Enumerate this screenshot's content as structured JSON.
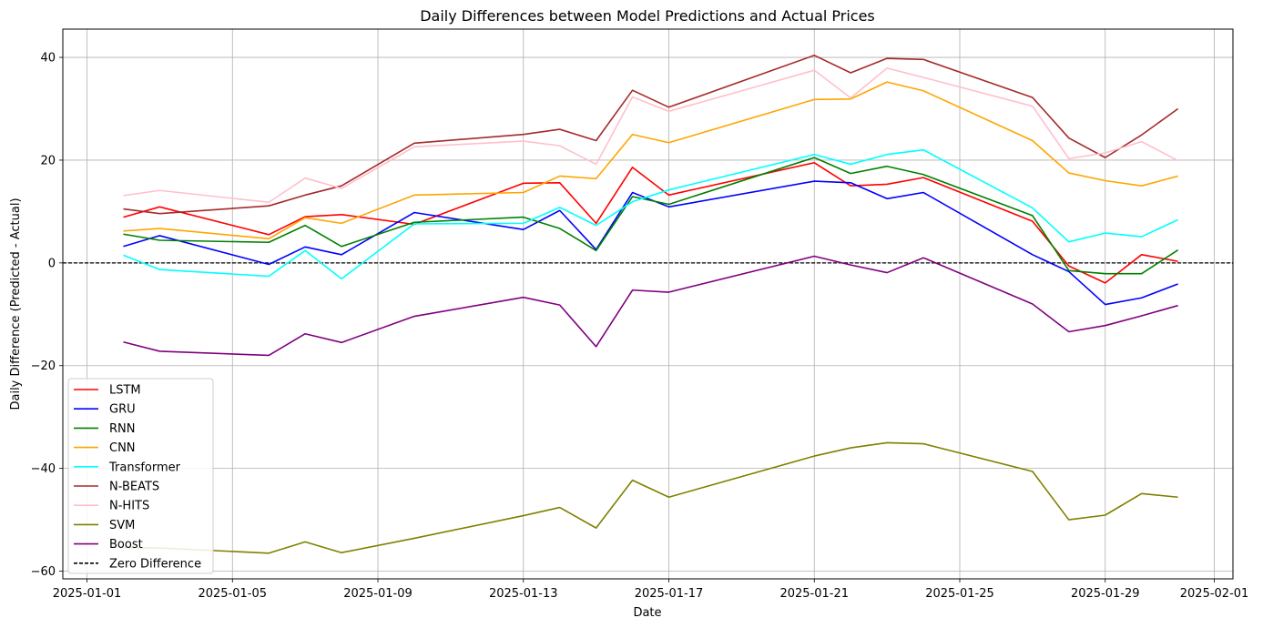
{
  "chart_data": {
    "type": "line",
    "title": "Daily Differences between Model Predictions and Actual Prices",
    "xlabel": "Date",
    "ylabel": "Daily Difference (Predicted - Actual)",
    "xlim": [
      "2025-01-01",
      "2025-02-01"
    ],
    "ylim": [
      -61.5,
      45.5
    ],
    "x_ticks": [
      "2025-01-01",
      "2025-01-05",
      "2025-01-09",
      "2025-01-13",
      "2025-01-17",
      "2025-01-21",
      "2025-01-25",
      "2025-01-29",
      "2025-02-01"
    ],
    "y_ticks": [
      -60,
      -40,
      -20,
      0,
      20,
      40
    ],
    "grid": true,
    "legend_position": "lower-left",
    "x": [
      "2025-01-02",
      "2025-01-03",
      "2025-01-06",
      "2025-01-07",
      "2025-01-08",
      "2025-01-10",
      "2025-01-13",
      "2025-01-14",
      "2025-01-15",
      "2025-01-16",
      "2025-01-17",
      "2025-01-21",
      "2025-01-22",
      "2025-01-23",
      "2025-01-24",
      "2025-01-27",
      "2025-01-28",
      "2025-01-29",
      "2025-01-30",
      "2025-01-31"
    ],
    "series": [
      {
        "name": "LSTM",
        "color": "#ff0000",
        "values": [
          8.9,
          10.9,
          5.5,
          9.0,
          9.4,
          7.5,
          15.5,
          15.6,
          7.7,
          18.6,
          13.2,
          19.5,
          15.0,
          15.3,
          16.6,
          8.1,
          -0.6,
          -3.9,
          1.6,
          0.3
        ]
      },
      {
        "name": "GRU",
        "color": "#0000ff",
        "values": [
          3.2,
          5.3,
          -0.3,
          3.1,
          1.6,
          9.8,
          6.5,
          10.2,
          2.6,
          13.7,
          10.9,
          15.9,
          15.6,
          12.5,
          13.7,
          1.6,
          -1.7,
          -8.1,
          -6.8,
          -4.1
        ]
      },
      {
        "name": "RNN",
        "color": "#008000",
        "values": [
          5.6,
          4.4,
          4.0,
          7.3,
          3.2,
          7.9,
          8.9,
          6.7,
          2.4,
          12.9,
          11.4,
          20.5,
          17.4,
          18.8,
          17.2,
          9.2,
          -1.5,
          -2.1,
          -2.1,
          2.5
        ]
      },
      {
        "name": "CNN",
        "color": "#ffa500",
        "values": [
          6.2,
          6.7,
          4.7,
          8.8,
          7.7,
          13.2,
          13.7,
          16.9,
          16.4,
          25.0,
          23.4,
          31.8,
          31.9,
          35.2,
          33.5,
          23.8,
          17.5,
          16.0,
          15.0,
          16.9
        ]
      },
      {
        "name": "Transformer",
        "color": "#00ffff",
        "values": [
          1.5,
          -1.3,
          -2.6,
          2.4,
          -3.1,
          7.6,
          7.7,
          10.8,
          7.3,
          11.9,
          14.2,
          21.1,
          19.2,
          21.1,
          22.0,
          10.7,
          4.1,
          5.8,
          5.1,
          8.4
        ]
      },
      {
        "name": "N-BEATS",
        "color": "#a52a2a",
        "values": [
          10.5,
          9.6,
          11.1,
          13.2,
          15.0,
          23.3,
          25.0,
          26.0,
          23.8,
          33.6,
          30.3,
          40.4,
          37.0,
          39.8,
          39.6,
          32.2,
          24.3,
          20.5,
          24.9,
          30.0
        ]
      },
      {
        "name": "N-HITS",
        "color": "#ffc0cb",
        "values": [
          13.1,
          14.1,
          11.8,
          16.5,
          14.5,
          22.6,
          23.7,
          22.8,
          19.2,
          32.3,
          29.5,
          37.5,
          32.1,
          37.9,
          36.1,
          30.5,
          20.3,
          21.4,
          23.6,
          19.9
        ]
      },
      {
        "name": "SVM",
        "color": "#808000",
        "values": [
          -55.4,
          -55.5,
          -56.5,
          -54.3,
          -56.4,
          -53.6,
          -49.2,
          -47.6,
          -51.6,
          -42.3,
          -45.6,
          -37.6,
          -36.0,
          -35.0,
          -35.2,
          -40.6,
          -50.0,
          -49.1,
          -44.9,
          -45.6
        ]
      },
      {
        "name": "Boost",
        "color": "#800080",
        "values": [
          -15.4,
          -17.2,
          -18.0,
          -13.8,
          -15.5,
          -10.4,
          -6.7,
          -8.2,
          -16.3,
          -5.3,
          -5.7,
          1.3,
          -0.4,
          -1.9,
          1.0,
          -8.0,
          -13.4,
          -12.2,
          -10.3,
          -8.3
        ]
      }
    ],
    "reference_line": {
      "name": "Zero Difference",
      "y": 0,
      "color": "#000000",
      "style": "dashed"
    }
  }
}
